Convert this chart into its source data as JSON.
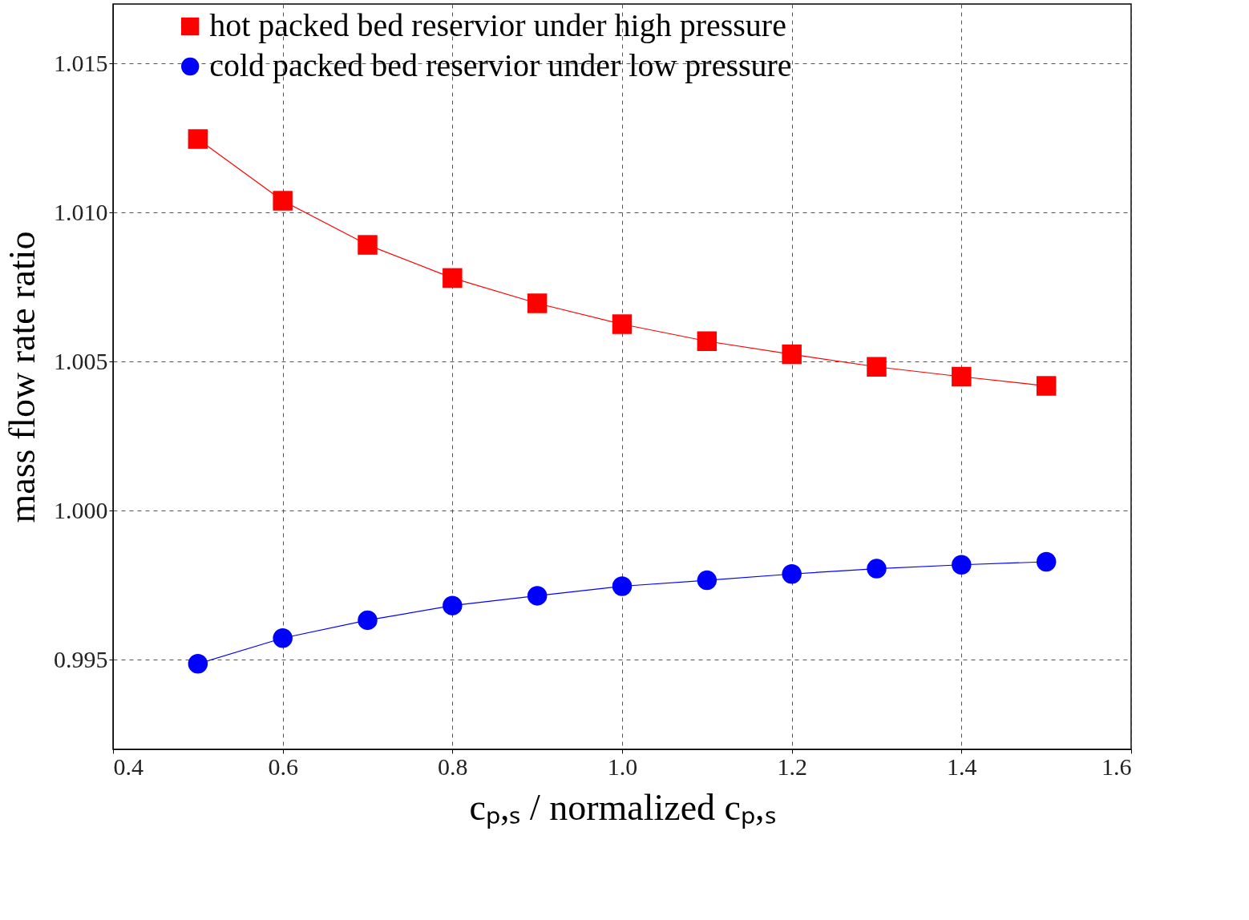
{
  "chart_data": {
    "type": "line",
    "xlabel": "cₚ,ₛ / normalized cₚ,ₛ",
    "ylabel": "mass flow rate ratio",
    "x": [
      0.5,
      0.6,
      0.7,
      0.8,
      0.9,
      1.0,
      1.1,
      1.2,
      1.3,
      1.4,
      1.5
    ],
    "series": [
      {
        "name": "hot packed bed reservior under high pressure",
        "color": "#ff0000",
        "marker": "square",
        "values": [
          1.01247,
          1.0104,
          1.00892,
          1.00781,
          1.00696,
          1.00626,
          1.00569,
          1.00525,
          1.00483,
          1.0045,
          1.00419
        ]
      },
      {
        "name": "cold packed bed reservior under low pressure",
        "color": "#0000ff",
        "marker": "circle",
        "values": [
          0.99487,
          0.99573,
          0.99633,
          0.99682,
          0.99715,
          0.99747,
          0.99767,
          0.99788,
          0.99806,
          0.99819,
          0.99829
        ]
      }
    ],
    "xlim": [
      0.4,
      1.6
    ],
    "xticks": [
      {
        "value": 0.4,
        "label": "0.4"
      },
      {
        "value": 0.6,
        "label": "0.6"
      },
      {
        "value": 0.8,
        "label": "0.8"
      },
      {
        "value": 1.0,
        "label": "1.0"
      },
      {
        "value": 1.2,
        "label": "1.2"
      },
      {
        "value": 1.4,
        "label": "1.4"
      },
      {
        "value": 1.6,
        "label": "1.6"
      }
    ],
    "ylim": [
      0.992,
      1.017
    ],
    "yticks": [
      {
        "value": 0.995,
        "label": "0.995"
      },
      {
        "value": 1.0,
        "label": "1.000"
      },
      {
        "value": 1.005,
        "label": "1.005"
      },
      {
        "value": 1.01,
        "label": "1.010"
      },
      {
        "value": 1.015,
        "label": "1.015"
      }
    ],
    "grid": true,
    "legend": "top",
    "line_style": "solid"
  }
}
